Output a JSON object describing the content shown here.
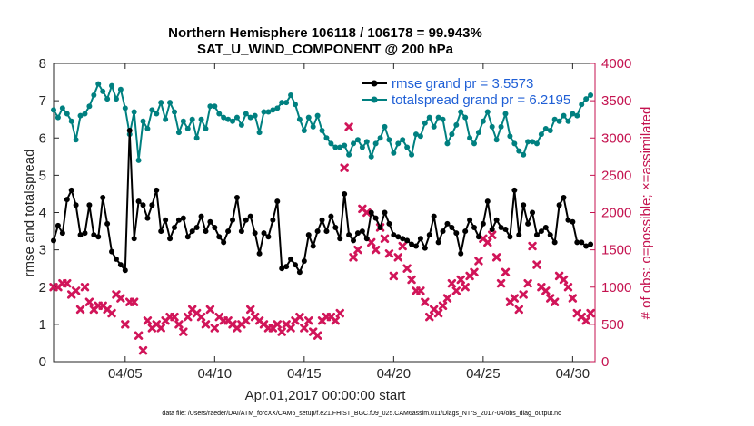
{
  "chart_data": {
    "type": "line",
    "title": "Northern Hemisphere 106118 / 106178 = 99.943%",
    "subtitle": "SAT_U_WIND_COMPONENT @ 200 hPa",
    "xlabel": "Apr.01,2017 00:00:00 start",
    "ylabel": "rmse and totalspread",
    "y2label": "# of obs: o=possible; ×=assimilated",
    "footnote": "data file: /Users/raeder/DAI/ATM_forcXX/CAM6_setup/f.e21.FHIST_BGC.f09_025.CAM6assim.011/Diags_NTrS_2017-04/obs_diag_output.nc",
    "xlim": [
      1.0,
      31.25
    ],
    "ylim": [
      0,
      8
    ],
    "y2lim": [
      0,
      4000
    ],
    "x_ticks": [
      5,
      10,
      15,
      20,
      25,
      30
    ],
    "x_tick_labels": [
      "04/05",
      "04/10",
      "04/15",
      "04/20",
      "04/25",
      "04/30"
    ],
    "y_ticks": [
      0,
      1,
      2,
      3,
      4,
      5,
      6,
      7,
      8
    ],
    "y2_ticks": [
      0,
      500,
      1000,
      1500,
      2000,
      2500,
      3000,
      3500,
      4000
    ],
    "legend_position": "top-right",
    "grid": false,
    "colors": {
      "rmse": "#000000",
      "totalspread": "#008080",
      "obs": "#d11559",
      "right_axis": "#c4124f",
      "legend_text": "#1f5fd6"
    },
    "x": [
      1.0,
      1.25,
      1.5,
      1.75,
      2.0,
      2.25,
      2.5,
      2.75,
      3.0,
      3.25,
      3.5,
      3.75,
      4.0,
      4.25,
      4.5,
      4.75,
      5.0,
      5.25,
      5.5,
      5.75,
      6.0,
      6.25,
      6.5,
      6.75,
      7.0,
      7.25,
      7.5,
      7.75,
      8.0,
      8.25,
      8.5,
      8.75,
      9.0,
      9.25,
      9.5,
      9.75,
      10.0,
      10.25,
      10.5,
      10.75,
      11.0,
      11.25,
      11.5,
      11.75,
      12.0,
      12.25,
      12.5,
      12.75,
      13.0,
      13.25,
      13.5,
      13.75,
      14.0,
      14.25,
      14.5,
      14.75,
      15.0,
      15.25,
      15.5,
      15.75,
      16.0,
      16.25,
      16.5,
      16.75,
      17.0,
      17.25,
      17.5,
      17.75,
      18.0,
      18.25,
      18.5,
      18.75,
      19.0,
      19.25,
      19.5,
      19.75,
      20.0,
      20.25,
      20.5,
      20.75,
      21.0,
      21.25,
      21.5,
      21.75,
      22.0,
      22.25,
      22.5,
      22.75,
      23.0,
      23.25,
      23.5,
      23.75,
      24.0,
      24.25,
      24.5,
      24.75,
      25.0,
      25.25,
      25.5,
      25.75,
      26.0,
      26.25,
      26.5,
      26.75,
      27.0,
      27.25,
      27.5,
      27.75,
      28.0,
      28.25,
      28.5,
      28.75,
      29.0,
      29.25,
      29.5,
      29.75,
      30.0,
      30.25,
      30.5,
      30.75,
      31.0
    ],
    "series": [
      {
        "name": "rmse grand pr = 3.5573",
        "marker": "filled circle",
        "values": [
          3.25,
          3.65,
          3.45,
          4.35,
          4.6,
          4.2,
          3.4,
          3.45,
          4.2,
          3.4,
          3.35,
          4.4,
          3.7,
          2.95,
          2.75,
          2.6,
          2.45,
          6.2,
          3.3,
          4.3,
          4.2,
          3.85,
          4.2,
          4.6,
          3.5,
          3.8,
          3.3,
          3.6,
          3.8,
          3.85,
          3.35,
          3.5,
          3.6,
          3.9,
          3.5,
          3.75,
          3.6,
          3.35,
          3.2,
          3.5,
          3.8,
          4.4,
          3.5,
          3.8,
          3.9,
          3.45,
          2.9,
          3.45,
          3.35,
          3.8,
          4.3,
          2.5,
          2.55,
          2.75,
          2.6,
          2.4,
          2.7,
          3.4,
          3.1,
          3.5,
          3.8,
          3.5,
          3.9,
          3.6,
          3.3,
          4.5,
          3.4,
          3.25,
          3.45,
          3.5,
          3.3,
          4.0,
          3.85,
          3.6,
          4.0,
          3.7,
          3.4,
          3.35,
          3.3,
          3.25,
          3.15,
          3.1,
          3.3,
          3.05,
          3.4,
          3.9,
          3.2,
          3.5,
          3.7,
          3.6,
          3.45,
          2.9,
          3.5,
          3.8,
          3.6,
          3.35,
          3.7,
          4.3,
          3.55,
          3.8,
          3.6,
          3.55,
          3.35,
          4.6,
          3.4,
          4.2,
          3.7,
          4.0,
          3.4,
          3.5,
          3.6,
          3.4,
          3.2,
          4.2,
          4.4,
          3.8,
          3.75,
          3.2,
          3.2,
          3.1,
          3.15
        ]
      },
      {
        "name": "totalspread grand pr = 6.2195",
        "marker": "filled circle",
        "values": [
          6.75,
          6.55,
          6.8,
          6.65,
          6.45,
          5.95,
          6.6,
          6.65,
          6.85,
          7.15,
          7.45,
          7.25,
          7.05,
          7.4,
          7.05,
          7.3,
          6.8,
          6.1,
          6.7,
          5.4,
          6.45,
          6.25,
          6.75,
          6.65,
          6.95,
          6.5,
          6.95,
          6.7,
          6.15,
          6.45,
          6.25,
          6.5,
          6.0,
          6.5,
          6.25,
          6.85,
          6.85,
          6.65,
          6.55,
          6.5,
          6.45,
          6.55,
          6.35,
          6.65,
          6.55,
          6.6,
          6.15,
          6.7,
          6.7,
          6.75,
          6.8,
          6.95,
          6.95,
          7.15,
          6.9,
          6.5,
          6.2,
          6.55,
          6.3,
          6.6,
          6.2,
          6.0,
          5.85,
          5.75,
          5.75,
          5.8,
          5.55,
          5.85,
          5.95,
          5.75,
          5.9,
          5.5,
          5.85,
          6.0,
          6.3,
          5.95,
          5.6,
          5.85,
          5.95,
          5.75,
          5.55,
          6.1,
          6.05,
          6.4,
          6.55,
          6.3,
          6.55,
          6.5,
          5.85,
          6.1,
          6.35,
          6.7,
          6.55,
          6.0,
          5.85,
          6.15,
          6.45,
          6.7,
          6.3,
          5.95,
          6.3,
          6.65,
          6.05,
          5.85,
          5.65,
          5.55,
          5.9,
          5.9,
          5.85,
          6.1,
          6.25,
          6.2,
          6.5,
          6.45,
          6.6,
          6.45,
          6.65,
          6.6,
          6.9,
          7.05,
          7.15
        ]
      },
      {
        "name": "# of obs assimilated",
        "marker": "x",
        "axis": "right",
        "values": [
          1000,
          1000,
          1050,
          1050,
          900,
          950,
          700,
          1000,
          800,
          700,
          750,
          750,
          700,
          650,
          900,
          850,
          500,
          800,
          800,
          350,
          150,
          550,
          450,
          500,
          450,
          550,
          600,
          600,
          500,
          400,
          600,
          700,
          650,
          600,
          500,
          700,
          450,
          600,
          550,
          550,
          500,
          450,
          500,
          550,
          700,
          600,
          550,
          500,
          450,
          450,
          500,
          400,
          500,
          450,
          550,
          600,
          450,
          550,
          400,
          350,
          550,
          600,
          600,
          550,
          650,
          2600,
          3150,
          1400,
          1500,
          2050,
          2000,
          1600,
          1500,
          1800,
          1650,
          1450,
          1150,
          1400,
          1550,
          1250,
          1100,
          950,
          950,
          800,
          600,
          700,
          650,
          750,
          850,
          1050,
          950,
          1100,
          1000,
          1150,
          1200,
          1350,
          1650,
          1600,
          1700,
          1400,
          1050,
          1200,
          800,
          850,
          700,
          900,
          1050,
          1550,
          1300,
          1000,
          950,
          850,
          800,
          1150,
          1100,
          1000,
          850,
          650,
          600,
          550,
          650
        ]
      }
    ]
  }
}
